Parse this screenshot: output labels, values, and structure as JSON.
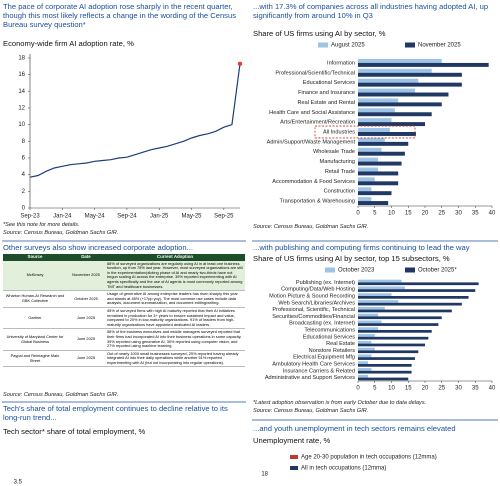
{
  "chart_data": [
    {
      "type": "line",
      "title": "The pace of corporate AI adoption rose sharply in the recent quarter, though this most likely reflects a change in the wording of the Census Bureau survey question*",
      "subtitle": "Economy-wide firm AI adoption rate, %",
      "categories": [
        "Sep-23",
        null,
        null,
        null,
        "Jan-24",
        null,
        null,
        null,
        "May-24",
        null,
        null,
        null,
        "Sep-24",
        null,
        null,
        null,
        "Jan-25",
        null,
        null,
        null,
        "May-25",
        null,
        null,
        null,
        "Sep-25",
        null,
        null
      ],
      "values": [
        3.7,
        3.9,
        4.4,
        4.8,
        5.0,
        5.2,
        5.3,
        5.4,
        5.6,
        5.7,
        5.8,
        6.0,
        6.1,
        6.4,
        6.7,
        7.0,
        7.2,
        7.4,
        7.7,
        8.0,
        8.4,
        8.7,
        8.9,
        9.2,
        9.7,
        10.0,
        17.3
      ],
      "color": "#1f3d7a",
      "highlight_color": "#e03c31",
      "ylim": [
        0,
        18
      ],
      "yticks": [
        0,
        2,
        4,
        6,
        8,
        10,
        12,
        14,
        16,
        18
      ],
      "note": "*See this note for more details.",
      "source": "Source: Census Bureau, Goldman Sachs GIR."
    },
    {
      "type": "hbar",
      "title": "...with 17.3% of companies across all industries having adopted AI, up significantly from around 10% in Q3",
      "subtitle": "Share of US firms using AI by sector, %",
      "categories": [
        "Information",
        "Professional/Scientific/Technical",
        "Educational Services",
        "Finance and Insurance",
        "Real Estate and Rental",
        "Health Care and Social Assistance",
        "Arts/Entertainment/Recreation",
        "All Industries",
        "Admin/Support/Waste Management",
        "Wholesale Trade",
        "Manufacturing",
        "Retail Trade",
        "Accommodation & Food Services",
        "Construction",
        "Transportation & Warehousing"
      ],
      "series": [
        {
          "name": "August 2025",
          "color": "#9dc3e6",
          "values": [
            25,
            22,
            18,
            17,
            12,
            11,
            10,
            9.5,
            8,
            7,
            6,
            6,
            5,
            4,
            4
          ]
        },
        {
          "name": "November 2025",
          "color": "#1f3864",
          "values": [
            39,
            31,
            31,
            27,
            25,
            22,
            20,
            17.3,
            15,
            14,
            13,
            12,
            12,
            10,
            9
          ]
        }
      ],
      "highlight_index": 7,
      "highlight_color": "#c0392b",
      "xlim": [
        0,
        40
      ],
      "xticks": [
        0,
        5,
        10,
        15,
        20,
        25,
        30,
        35,
        40
      ],
      "source": "Source: Census Bureau, Goldman Sachs GIR."
    },
    {
      "type": "hbar",
      "title": "...with publishing and computing firms continuing to lead the way",
      "subtitle": "Share of US firms using AI by sector, top 15 subsectors, %",
      "categories": [
        "Publishing (ex. Internet)",
        "Computing/Data/Web Hosting",
        "Motion Picture & Sound Recording",
        "Web Search/Libraries/Archives",
        "Professional, Scientific, Technical",
        "Securities/Commodities/Financial",
        "Broadcasting (ex. Internet)",
        "Telecommunications",
        "Educational Services",
        "Real Estate",
        "Nonstore Retailers",
        "Electrical Equipment Mfg",
        "Ambulatory Health Care Services",
        "Insurance Carriers & Related",
        "Administrative and Support Services"
      ],
      "series": [
        {
          "name": "October 2023",
          "color": "#9dc3e6",
          "values": [
            13,
            14,
            10,
            12,
            8,
            6,
            7,
            6,
            5,
            4,
            5,
            4,
            3,
            4,
            3
          ]
        },
        {
          "name": "October 2025*",
          "color": "#1f3864",
          "values": [
            36,
            35,
            33,
            31,
            28,
            25,
            24,
            22,
            21,
            20,
            18,
            17,
            16,
            16,
            15
          ]
        }
      ],
      "xlim": [
        0,
        40
      ],
      "xticks": [
        0,
        5,
        10,
        15,
        20,
        25,
        30,
        35,
        40
      ],
      "note": "*Latest adoption observation is from early October due to data delays.",
      "source": "Source: Census Bureau, Goldman Sachs GIR."
    },
    {
      "type": "line",
      "title": "Tech's share of total employment continues to decline relative to its long-run trend...",
      "subtitle": "Tech sector* share of total employment, %",
      "yticks": [
        3.5
      ]
    },
    {
      "type": "line",
      "title": "...and youth unemployment in tech sectors remains elevated",
      "subtitle": "Unemployment rate, %",
      "series": [
        {
          "name": "Age 20-30 population in tech occupations (12mma)",
          "color": "#c0392b",
          "values": []
        },
        {
          "name": "All in tech occupations (12mma)",
          "color": "#1f3864",
          "values": []
        }
      ],
      "yticks": [
        18
      ]
    }
  ],
  "table": {
    "title": "Other surveys also show increased corporate adoption...",
    "columns": [
      "Source",
      "Date",
      "Current Adoption"
    ],
    "rows": [
      [
        "McKinsey",
        "November 2025",
        "88% of surveyed organizations are regularly using AI in at least one business function, up from 78% last year. However, most surveyed organizations are still in the experimentation/piloting phase of AI and nearly two-thirds have not begun scaling AI across the enterprise. 39% reported experimenting with AI agents specifically and the use of AI agents is most commonly reported among TMT and healthcare businesses."
      ],
      [
        "Wharton Human-AI Research and GBK Collective",
        "October 2025",
        "Usage of generative AI among enterprise leaders has risen sharply this year and stands at 46% (+17pp yoy). The most common use cases include data analysis, document summarization, and document editing/writing."
      ],
      [
        "Gartner",
        "June 2025",
        "45% of surveyed firms with high AI maturity reported that their AI initiatives remained in production for 3+ years to ensure sustained impact and value, compared to 20% in low-maturity organizations. 91% of leaders from high-maturity organizations have appointed dedicated AI leaders."
      ],
      [
        "University of Maryland Center for Global Business",
        "June 2025",
        "58% of the business executives and middle managers surveyed reported that their firms had incorporated AI into their business operations in some capacity. 39% reported using generative AI, 30% reported using computer vision, and 27% reported using machine learning."
      ],
      [
        "Paypal and Reimagine Main Street",
        "June 2025",
        "Out of nearly 1000 small businesses surveyed, 25% reported having already integrated AI into their daily operations while another 51% reported experimenting with AI (but not incorporating into regular operations)."
      ]
    ],
    "source": "Source: Census Bureau, Goldman Sachs GIR."
  }
}
